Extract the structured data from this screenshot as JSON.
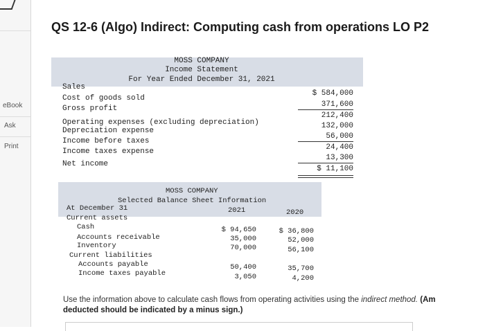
{
  "sidebar": {
    "items": [
      {
        "label": "eBook"
      },
      {
        "label": "Ask"
      },
      {
        "label": "Print"
      }
    ]
  },
  "question": {
    "title": "QS 12-6 (Algo) Indirect: Computing cash from operations LO P2"
  },
  "income_statement": {
    "company": "MOSS COMPANY",
    "name": "Income Statement",
    "period": "For Year Ended December 31, 2021",
    "rows": [
      {
        "label": "Sales",
        "amount": "$ 584,000"
      },
      {
        "label": "Cost of goods sold",
        "amount": "371,600"
      },
      {
        "label": "Gross profit",
        "amount": "212,400"
      },
      {
        "label": "Operating expenses (excluding depreciation)",
        "amount": "132,000"
      },
      {
        "label": "Depreciation expense",
        "amount": "56,000"
      },
      {
        "label": "Income before taxes",
        "amount": "24,400"
      },
      {
        "label": "Income taxes expense",
        "amount": "13,300"
      },
      {
        "label": "Net income",
        "amount": "$ 11,100"
      }
    ]
  },
  "balance_sheet": {
    "company": "MOSS COMPANY",
    "name": "Selected Balance Sheet Information",
    "at_label": "At December 31",
    "year1": "2021",
    "year2": "2020",
    "rows": [
      {
        "label": "Current assets",
        "v1": "",
        "v2": ""
      },
      {
        "label": "Cash",
        "v1": "$ 94,650",
        "v2": "$ 36,800"
      },
      {
        "label": "Accounts receivable",
        "v1": "35,000",
        "v2": "52,000"
      },
      {
        "label": "Inventory",
        "v1": "70,000",
        "v2": "56,100"
      },
      {
        "label": "Current liabilities",
        "v1": "",
        "v2": ""
      },
      {
        "label": "Accounts payable",
        "v1": "50,400",
        "v2": "35,700"
      },
      {
        "label": "Income taxes payable",
        "v1": "3,050",
        "v2": "4,200"
      }
    ]
  },
  "instructions": {
    "text_start": "Use the information above to calculate cash flows from operating activities using the ",
    "text_italic": "indirect method.",
    "text_bold_tail": "(Am",
    "text_bold_line2": "deducted should be indicated by a minus sign.)"
  }
}
